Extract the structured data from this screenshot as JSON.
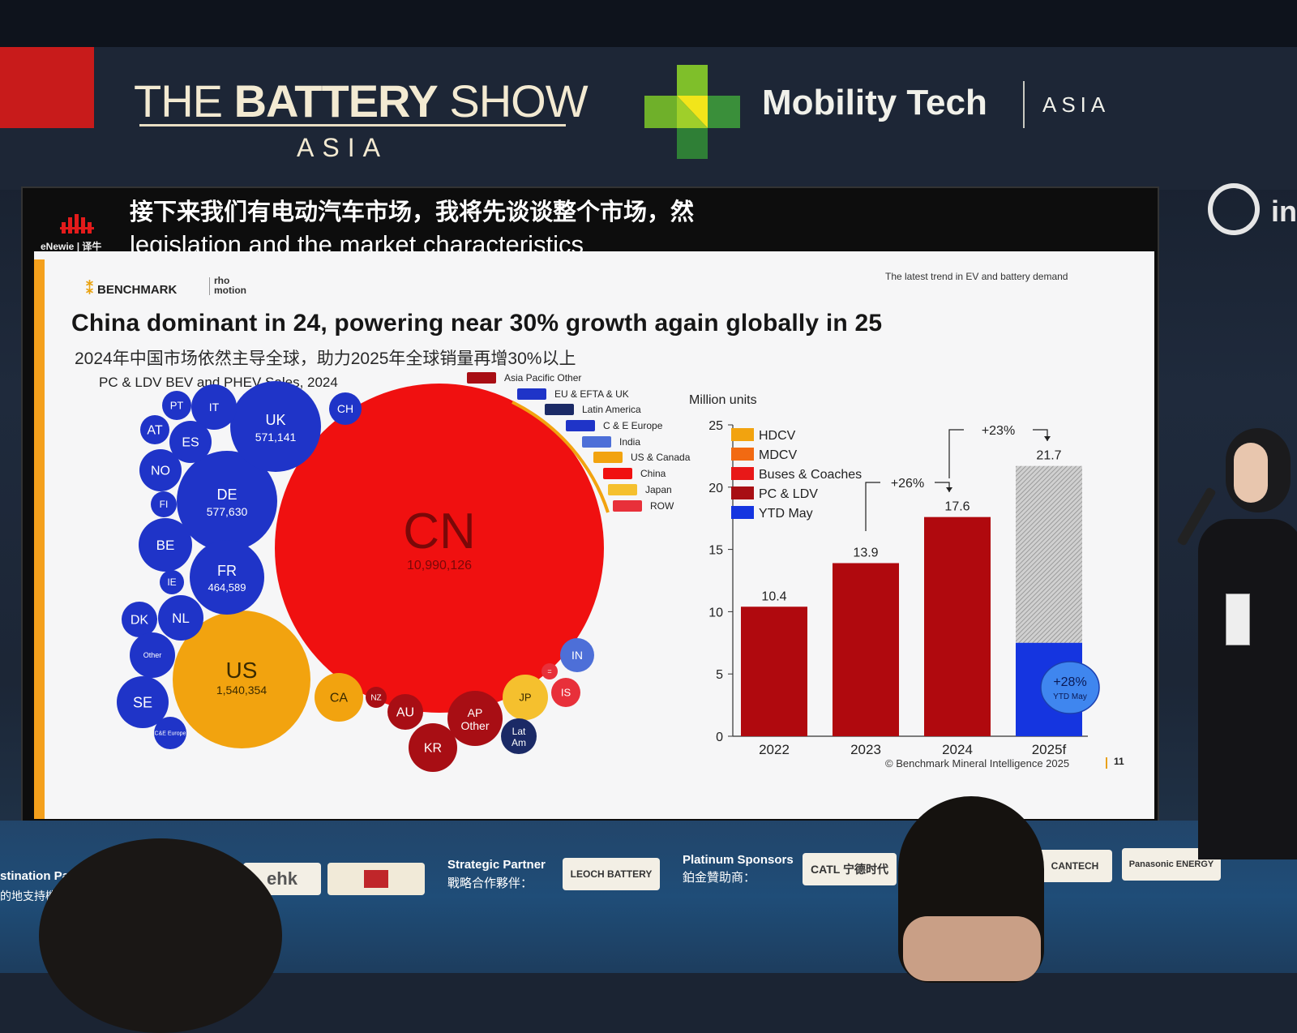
{
  "venue": {
    "show_title_light": "THE ",
    "show_title_bold": "BATTERY",
    "show_title_end": " SHOW",
    "show_subtitle": "ASIA",
    "partner_name": "Mobility Tech",
    "partner_region": "ASIA",
    "right_logo_text": "in"
  },
  "subtitles": {
    "brand": "eNewie | 译牛",
    "line_zh": "接下来我们有电动汽车市场，我将先谈谈整个市场，然",
    "line_en": "legislation and the market characteristics"
  },
  "slide": {
    "brand": "BENCHMARK",
    "partner_top": "rho",
    "partner_bottom": "motion",
    "trend_note": "The latest trend in EV and battery demand",
    "title": "China dominant in 24, powering near 30% growth again globally in 25",
    "subtitle_zh": "2024年中国市场依然主导全球，助力2025年全球销量再增30%以上",
    "bubble_chart_label": "PC & LDV BEV and PHEV Sales, 2024",
    "footer": "© Benchmark Mineral Intelligence 2025",
    "page_number": "11"
  },
  "colors": {
    "europe_blue": "#1f34c8",
    "china_red": "#f01010",
    "us_orange": "#f2a30f",
    "apac_darkred": "#a80e14",
    "latam_navy": "#1b2a66",
    "india_blue": "#4d6fd8",
    "japan_yellow": "#f5c02e",
    "row_red": "#e8303a",
    "canada_orange": "#f2a30f",
    "bar_red": "#b0090e",
    "ytd_blue": "#1535e0",
    "hatch_grey": "#b8b8b8"
  },
  "bubbles": [
    {
      "code": "CN",
      "value": "10,990,126",
      "region": "china"
    },
    {
      "code": "US",
      "value": "1,540,354",
      "region": "us"
    },
    {
      "code": "DE",
      "value": "577,630",
      "region": "europe"
    },
    {
      "code": "UK",
      "value": "571,141",
      "region": "europe"
    },
    {
      "code": "FR",
      "value": "464,589",
      "region": "europe"
    },
    {
      "code": "PT",
      "value": "",
      "region": "europe"
    },
    {
      "code": "IT",
      "value": "",
      "region": "europe"
    },
    {
      "code": "CH",
      "value": "",
      "region": "europe"
    },
    {
      "code": "AT",
      "value": "",
      "region": "europe"
    },
    {
      "code": "ES",
      "value": "",
      "region": "europe"
    },
    {
      "code": "NO",
      "value": "",
      "region": "europe"
    },
    {
      "code": "FI",
      "value": "",
      "region": "europe"
    },
    {
      "code": "BE",
      "value": "",
      "region": "europe"
    },
    {
      "code": "IE",
      "value": "",
      "region": "europe"
    },
    {
      "code": "DK",
      "value": "",
      "region": "europe"
    },
    {
      "code": "NL",
      "value": "",
      "region": "europe"
    },
    {
      "code": "Other",
      "value": "",
      "region": "europe"
    },
    {
      "code": "SE",
      "value": "",
      "region": "europe"
    },
    {
      "code": "C&E Europe",
      "value": "",
      "region": "europe"
    },
    {
      "code": "CA",
      "value": "",
      "region": "canada"
    },
    {
      "code": "NZ",
      "value": "",
      "region": "apac"
    },
    {
      "code": "AU",
      "value": "",
      "region": "apac"
    },
    {
      "code": "AP Other",
      "value": "",
      "region": "apac"
    },
    {
      "code": "KR",
      "value": "",
      "region": "apac"
    },
    {
      "code": "JP",
      "value": "",
      "region": "japan"
    },
    {
      "code": "Lat Am",
      "value": "",
      "region": "latam"
    },
    {
      "code": "IN",
      "value": "",
      "region": "india"
    },
    {
      "code": "IS",
      "value": "",
      "region": "row"
    },
    {
      "code": "=",
      "value": "",
      "region": "row"
    }
  ],
  "bubble_legend": [
    "Asia Pacific Other",
    "EU & EFTA & UK",
    "Latin America",
    "C & E Europe",
    "India",
    "US & Canada",
    "China",
    "Japan",
    "ROW"
  ],
  "chart_data": {
    "type": "bar",
    "title": "",
    "ylabel": "Million units",
    "xlabel": "",
    "ylim": [
      0,
      25
    ],
    "yticks": [
      0,
      5,
      10,
      15,
      20,
      25
    ],
    "categories": [
      "2022",
      "2023",
      "2024",
      "2025f"
    ],
    "values": [
      10.4,
      13.9,
      17.6,
      21.7
    ],
    "value_labels": [
      "10.4",
      "13.9",
      "17.6",
      "21.7"
    ],
    "ytd_may_2025": 7.5,
    "legend": [
      "HDCV",
      "MDCV",
      "Buses & Coaches",
      "PC & LDV",
      "YTD May"
    ],
    "legend_colors": [
      "#f2a30f",
      "#f26a12",
      "#e81818",
      "#a80e14",
      "#1535e0"
    ],
    "growth_annotations": [
      "+26%",
      "+23%"
    ],
    "ytd_badge_value": "+28%",
    "ytd_badge_label": "YTD May"
  },
  "sponsors": {
    "destination_label": "stination Partn",
    "destination_zh": "的地支持機構",
    "strategic_label": "Strategic Partner",
    "strategic_zh": "戰略合作夥伴：",
    "platinum_label": "Platinum Sponsors",
    "platinum_zh": "鉑金贊助商：",
    "hk_logo": "ehk",
    "leoch": "LEOCH BATTERY",
    "catl": "CATL 宁德时代",
    "cantech": "CANTECH",
    "panasonic": "Panasonic ENERGY"
  }
}
